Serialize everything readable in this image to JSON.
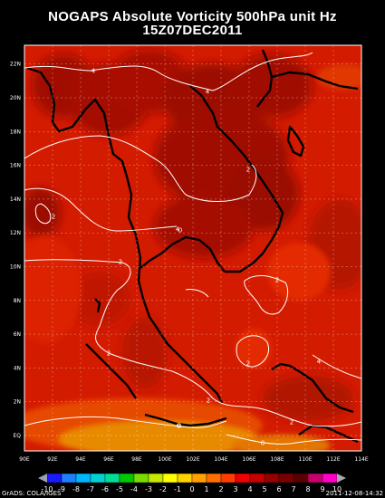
{
  "title_line1": "NOGAPS Absolute Vorticity 500hPa unit Hz",
  "title_line2": "15Z07DEC2011",
  "x_ticks": [
    "90E",
    "92E",
    "94E",
    "96E",
    "98E",
    "100E",
    "102E",
    "104E",
    "106E",
    "108E",
    "110E",
    "112E",
    "114E"
  ],
  "y_ticks": [
    "EQ",
    "2N",
    "4N",
    "6N",
    "8N",
    "10N",
    "12N",
    "14N",
    "16N",
    "18N",
    "20N",
    "22N"
  ],
  "colorbar": {
    "labels": [
      "-10",
      "-9",
      "-8",
      "-7",
      "-6",
      "-5",
      "-4",
      "-3",
      "-2",
      "-1",
      "0",
      "1",
      "2",
      "3",
      "4",
      "5",
      "6",
      "7",
      "8",
      "9",
      "10"
    ],
    "colors": [
      "#1a1aff",
      "#1f7fff",
      "#00b4ff",
      "#00d2d2",
      "#00dc96",
      "#00c800",
      "#78dc00",
      "#c8e600",
      "#ffff00",
      "#ffd200",
      "#ffa000",
      "#ff6e00",
      "#ff3c00",
      "#f00000",
      "#c80000",
      "#960000",
      "#780000",
      "#5a0000",
      "#c8006e",
      "#ff00c8"
    ]
  },
  "contour_labels": [
    "4",
    "4",
    "2",
    "2",
    "4",
    "0",
    "2",
    "2",
    "2",
    "2",
    "2",
    "4",
    "0",
    "0",
    "2",
    "0"
  ],
  "footer_left": "GrADS: COLA/IGES",
  "footer_right": "2011-12-08-14:32"
}
